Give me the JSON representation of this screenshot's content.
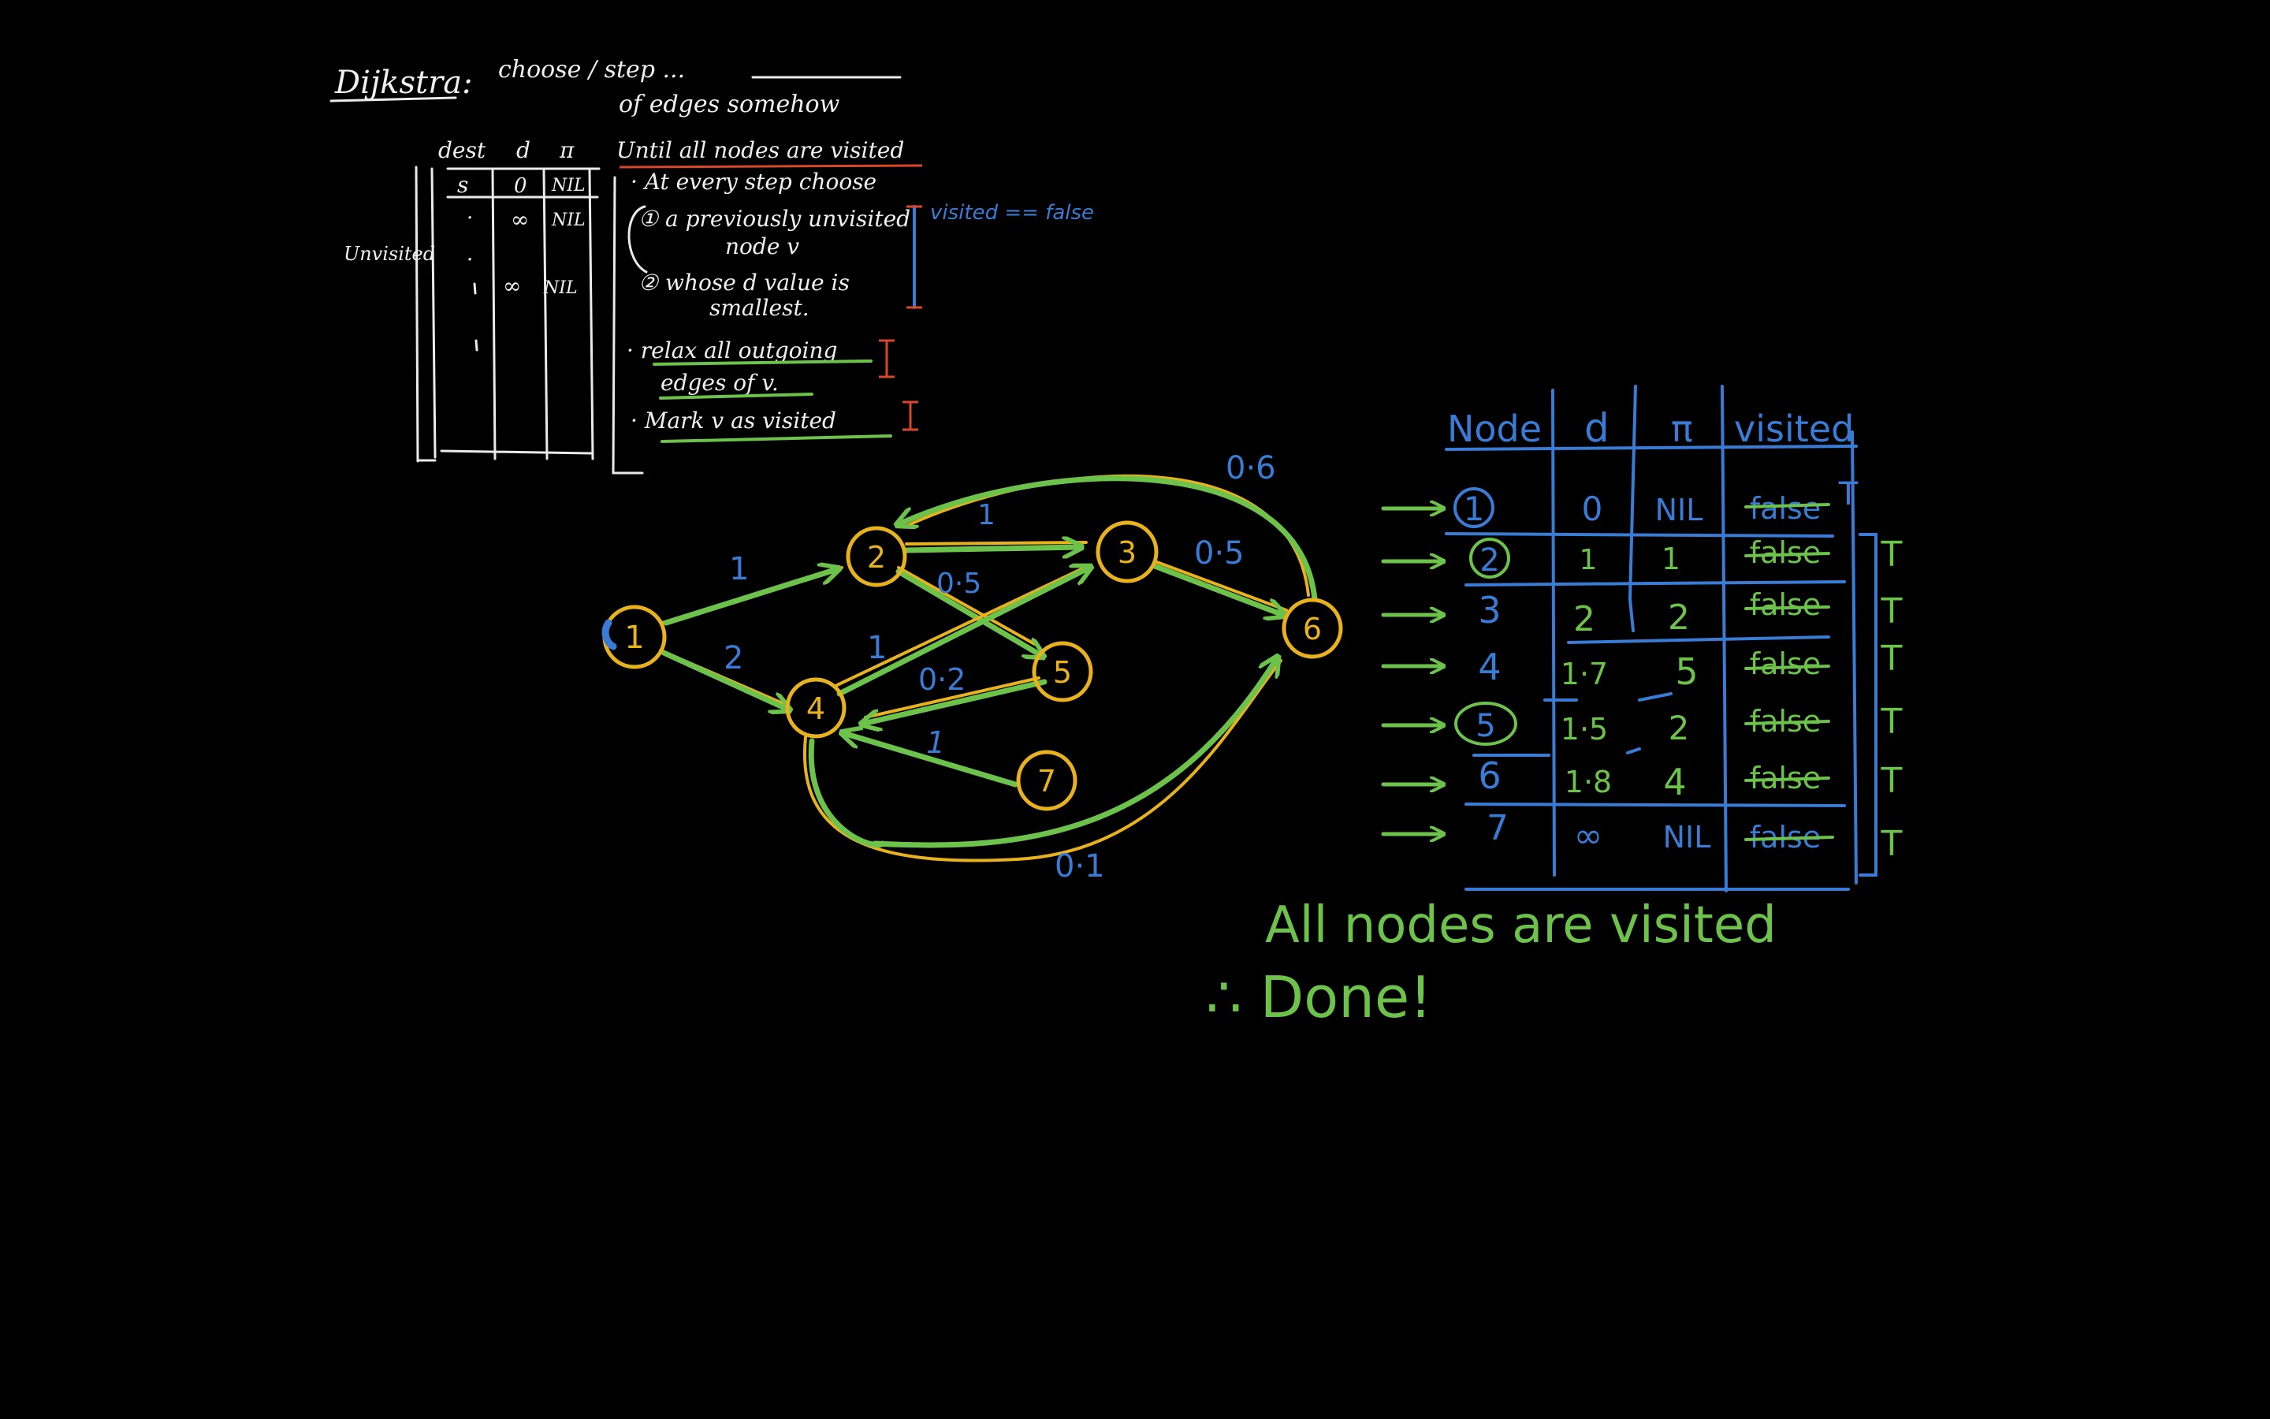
{
  "notes": {
    "title": "Dijkstra:",
    "title_rest": "choose / step ...",
    "sub_note": "of edges somehow",
    "table_headers": [
      "dest",
      "d",
      "π"
    ],
    "table_row_1": [
      "s",
      "0",
      "NIL"
    ],
    "table_row_2": [
      "·",
      "∞",
      "NIL"
    ],
    "table_row_3": [
      "·",
      "∞",
      "NIL"
    ],
    "side_label": "Unvisited",
    "algo_header": "Until all nodes are visited",
    "algo_step1": "· At every step choose",
    "algo_step1a": "① a previously unvisited",
    "algo_step1a2": "node v",
    "algo_step1b": "② whose d value is",
    "algo_step1b2": "smallest.",
    "visited_note": "visited == false",
    "algo_step2": "· relax all outgoing",
    "algo_step2b": "edges of v.",
    "algo_step3": "· Mark v as visited"
  },
  "graph": {
    "nodes": [
      "1",
      "2",
      "3",
      "4",
      "5",
      "6",
      "7"
    ],
    "edge_labels": {
      "e12": "1",
      "e14": "2",
      "e23": "1",
      "e25": "0·5",
      "e43": "1",
      "e36": "0·5",
      "e26": "0·6",
      "e54": "0·2",
      "e74": "1",
      "e46": "0·1"
    }
  },
  "result_table": {
    "headers": [
      "Node",
      "d",
      "π",
      "visited"
    ],
    "rows": [
      {
        "node": "1",
        "d": "0",
        "pi": "NIL",
        "visited": "false",
        "final": "T"
      },
      {
        "node": "2",
        "d": "1",
        "pi": "1",
        "visited": "false",
        "final": "T"
      },
      {
        "node": "3",
        "d": "2",
        "pi": "2",
        "visited": "false",
        "final": "T"
      },
      {
        "node": "4",
        "d": "1·7",
        "pi": "5",
        "visited": "false",
        "final": "T"
      },
      {
        "node": "5",
        "d": "1·5",
        "pi": "2",
        "visited": "false",
        "final": "T"
      },
      {
        "node": "6",
        "d": "1·8",
        "pi": "4",
        "visited": "false",
        "final": "T"
      },
      {
        "node": "7",
        "d": "∞",
        "pi": "NIL",
        "visited": "false",
        "final": "T"
      }
    ]
  },
  "conclusion": {
    "line1": "All nodes are visited",
    "line2": "∴ Done!"
  },
  "colors": {
    "blue": "#3a7bd5",
    "green": "#6cc24a",
    "yellow": "#e8b21f",
    "white": "#eaeaea",
    "red": "#d9472b"
  }
}
